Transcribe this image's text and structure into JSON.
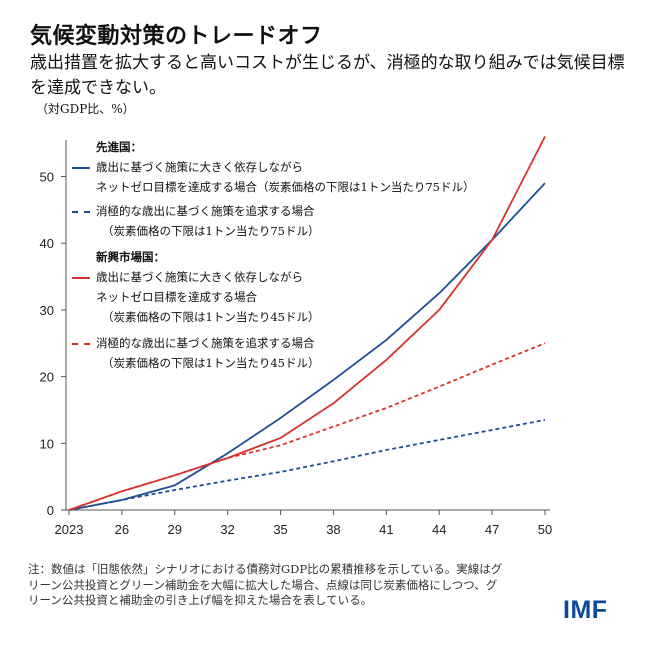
{
  "title": "気候変動対策のトレードオフ",
  "subtitle": "歳出措置を拡大すると高いコストが生じるが、消極的な取り組みでは気候目標を達成できない。",
  "unit_label": "（対GDP比、%）",
  "legend": {
    "group1": "先進国：",
    "group1_solid_line1": "歳出に基づく施策に大きく依存しながら",
    "group1_solid_line2": "ネットゼロ目標を達成する場合（炭素価格の下限は1トン当たり75ドル）",
    "group1_dashed_line1": "消極的な歳出に基づく施策を追求する場合",
    "group1_dashed_line2": "（炭素価格の下限は1トン当たり75ドル）",
    "group2": "新興市場国：",
    "group2_solid_line1": "歳出に基づく施策に大きく依存しながら",
    "group2_solid_line2": "ネットゼロ目標を達成する場合",
    "group2_solid_line3": "（炭素価格の下限は1トン当たり45ドル）",
    "group2_dashed_line1": "消極的な歳出に基づく施策を追求する場合",
    "group2_dashed_line2": "（炭素価格の下限は1トン当たり45ドル）"
  },
  "note": "注：数値は「旧態依然」シナリオにおける債務対GDP比の累積推移を示している。実線はグリーン公共投資とグリーン補助金を大幅に拡大した場合、点線は同じ炭素価格にしつつ、グリーン公共投資と補助金の引き上げ幅を抑えた場合を表している。",
  "logo": "IMF",
  "chart_data": {
    "type": "line",
    "x": [
      2023,
      2026,
      2029,
      2032,
      2035,
      2038,
      2041,
      2044,
      2047,
      2050
    ],
    "x_tick_labels": [
      "2023",
      "26",
      "29",
      "32",
      "35",
      "38",
      "41",
      "44",
      "47",
      "50"
    ],
    "y_ticks": [
      0,
      10,
      20,
      30,
      40,
      50
    ],
    "ylim": [
      0,
      55
    ],
    "xlim": [
      2023,
      2050
    ],
    "grid": false,
    "legend_placement": "top-left",
    "series": [
      {
        "name": "先進国：歳出に基づく施策に大きく依存しながらネットゼロ目標を達成する場合（炭素価格の下限は1トン当たり75ドル）",
        "color": "#1f4e96",
        "style": "solid",
        "values": [
          0,
          1.5,
          3.7,
          8.5,
          13.8,
          19.5,
          25.5,
          32.5,
          40.5,
          49
        ]
      },
      {
        "name": "先進国：消極的な歳出に基づく施策を追求する場合（炭素価格の下限は1トン当たり75ドル）",
        "color": "#1f4e96",
        "style": "dashed",
        "values": [
          0,
          1.5,
          3,
          4.4,
          5.7,
          7.3,
          9,
          10.5,
          12,
          13.5
        ]
      },
      {
        "name": "新興市場国：歳出に基づく施策に大きく依存しながらネットゼロ目標を達成する場合（炭素価格の下限は1トン当たり45ドル）",
        "color": "#d9312b",
        "style": "solid",
        "values": [
          0,
          2.8,
          5.2,
          7.8,
          10.8,
          16,
          22.5,
          30,
          40.5,
          56
        ]
      },
      {
        "name": "新興市場国：消極的な歳出に基づく施策を追求する場合（炭素価格の下限は1トン当たり45ドル）",
        "color": "#d9312b",
        "style": "dashed",
        "values": [
          0,
          2.8,
          5.2,
          7.8,
          9.7,
          12.5,
          15.3,
          18.5,
          21.8,
          25
        ]
      }
    ]
  }
}
